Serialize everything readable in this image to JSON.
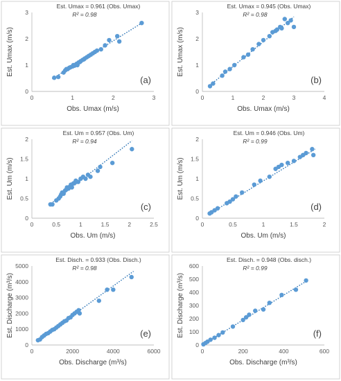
{
  "chart_data": [
    {
      "type": "scatter",
      "panel_label": "(a)",
      "xlabel": "Obs. Umax (m/s)",
      "ylabel": "Est. Umax (m/s)",
      "xlim": [
        0,
        3
      ],
      "ylim": [
        0,
        3
      ],
      "xticks": [
        0,
        1,
        2,
        3
      ],
      "yticks": [
        0,
        1,
        2,
        3
      ],
      "equation": "Est. Umax = 0.961 (Obs. Umax)",
      "r2": "R² = 0.98",
      "trend_slope": 0.961,
      "trend_x": [
        0.5,
        2.7
      ],
      "x": [
        0.55,
        0.65,
        0.78,
        0.82,
        0.85,
        0.88,
        0.92,
        0.95,
        1.0,
        1.02,
        1.05,
        1.08,
        1.1,
        1.12,
        1.15,
        1.18,
        1.2,
        1.25,
        1.28,
        1.3,
        1.35,
        1.4,
        1.45,
        1.5,
        1.55,
        1.6,
        1.7,
        1.8,
        1.9,
        2.1,
        2.15,
        2.7
      ],
      "y": [
        0.52,
        0.55,
        0.72,
        0.8,
        0.85,
        0.85,
        0.9,
        0.92,
        0.95,
        1.0,
        0.98,
        1.02,
        1.05,
        1.0,
        1.1,
        1.12,
        1.15,
        1.2,
        1.22,
        1.25,
        1.3,
        1.35,
        1.4,
        1.45,
        1.5,
        1.55,
        1.6,
        1.75,
        1.95,
        2.1,
        1.9,
        2.6
      ]
    },
    {
      "type": "scatter",
      "panel_label": "(b)",
      "xlabel": "Obs. Umax (m/s)",
      "ylabel": "Est. Umax (m/s)",
      "xlim": [
        0,
        4
      ],
      "ylim": [
        0,
        3
      ],
      "xticks": [
        0,
        1,
        2,
        3,
        4
      ],
      "yticks": [
        0,
        1,
        2,
        3
      ],
      "equation": "Est. Umax = 0.945 (Obs. Umax)",
      "r2": "R² = 0.98",
      "trend_slope": 0.945,
      "trend_x": [
        0.2,
        3.0
      ],
      "x": [
        0.25,
        0.35,
        0.65,
        0.75,
        0.9,
        1.05,
        1.35,
        1.5,
        1.65,
        1.85,
        2.0,
        2.2,
        2.3,
        2.4,
        2.45,
        2.55,
        2.6,
        2.7,
        2.8,
        2.9,
        3.0
      ],
      "y": [
        0.2,
        0.3,
        0.6,
        0.75,
        0.85,
        1.0,
        1.3,
        1.4,
        1.6,
        1.8,
        1.95,
        2.1,
        2.25,
        2.3,
        2.35,
        2.45,
        2.4,
        2.75,
        2.6,
        2.7,
        2.45
      ]
    },
    {
      "type": "scatter",
      "panel_label": "(c)",
      "xlabel": "Obs. Um (m/s)",
      "ylabel": "Est. Um (m/s)",
      "xlim": [
        0,
        2.5
      ],
      "ylim": [
        0,
        2
      ],
      "xticks": [
        0,
        0.5,
        1,
        1.5,
        2,
        2.5
      ],
      "yticks": [
        0,
        0.5,
        1,
        1.5,
        2
      ],
      "equation": "Est. Um = 0.957 (Obs. Um)",
      "r2": "R² = 0.94",
      "trend_slope": 0.957,
      "trend_x": [
        0.35,
        2.05
      ],
      "x": [
        0.38,
        0.42,
        0.5,
        0.55,
        0.58,
        0.6,
        0.62,
        0.65,
        0.68,
        0.7,
        0.72,
        0.75,
        0.78,
        0.8,
        0.82,
        0.85,
        0.88,
        0.9,
        0.95,
        1.0,
        1.05,
        1.1,
        1.15,
        1.2,
        1.35,
        1.4,
        1.65,
        2.05
      ],
      "y": [
        0.35,
        0.35,
        0.45,
        0.5,
        0.55,
        0.6,
        0.65,
        0.62,
        0.7,
        0.72,
        0.78,
        0.75,
        0.8,
        0.85,
        0.78,
        0.88,
        0.9,
        0.95,
        0.92,
        1.0,
        1.05,
        1.0,
        1.1,
        1.05,
        1.2,
        1.3,
        1.4,
        1.75
      ]
    },
    {
      "type": "scatter",
      "panel_label": "(d)",
      "xlabel": "Obs. Um (m/s)",
      "ylabel": "Est. Um (m/s)",
      "xlim": [
        0,
        2
      ],
      "ylim": [
        0,
        2
      ],
      "xticks": [
        0,
        0.5,
        1,
        1.5,
        2
      ],
      "yticks": [
        0,
        0.5,
        1,
        1.5,
        2
      ],
      "equation": "Est. Um = 0.946 (Obs. Um)",
      "r2": "R² = 0.99",
      "trend_slope": 0.946,
      "trend_x": [
        0.1,
        1.85
      ],
      "x": [
        0.12,
        0.15,
        0.2,
        0.25,
        0.4,
        0.45,
        0.5,
        0.55,
        0.65,
        0.85,
        0.95,
        1.1,
        1.2,
        1.25,
        1.3,
        1.4,
        1.5,
        1.6,
        1.65,
        1.7,
        1.8,
        1.82
      ],
      "y": [
        0.12,
        0.15,
        0.2,
        0.25,
        0.38,
        0.42,
        0.48,
        0.55,
        0.65,
        0.85,
        0.95,
        1.05,
        1.25,
        1.3,
        1.35,
        1.4,
        1.45,
        1.55,
        1.6,
        1.65,
        1.75,
        1.6
      ]
    },
    {
      "type": "scatter",
      "panel_label": "(e)",
      "xlabel": "Obs. Discharge (m³/s)",
      "ylabel": "Est. Discharge (m³/s)",
      "xlim": [
        0,
        6000
      ],
      "ylim": [
        0,
        5000
      ],
      "xticks": [
        0,
        2000,
        4000,
        6000
      ],
      "yticks": [
        0,
        1000,
        2000,
        3000,
        4000,
        5000
      ],
      "equation": "Est. Disch. = 0.933 (Obs. Disch.)",
      "r2": "R² = 0.98",
      "trend_slope": 0.933,
      "trend_x": [
        300,
        5000
      ],
      "x": [
        300,
        400,
        500,
        600,
        700,
        800,
        900,
        1000,
        1100,
        1200,
        1300,
        1400,
        1500,
        1600,
        1700,
        1800,
        1900,
        2000,
        2100,
        2200,
        2300,
        2350,
        3300,
        3700,
        4000,
        4900
      ],
      "y": [
        300,
        350,
        500,
        600,
        700,
        750,
        850,
        950,
        1000,
        1100,
        1200,
        1300,
        1400,
        1500,
        1550,
        1700,
        1750,
        1900,
        2000,
        2100,
        2200,
        2000,
        2800,
        3500,
        3500,
        4300
      ]
    },
    {
      "type": "scatter",
      "panel_label": "(f)",
      "xlabel": "Obs. Discharge (m³/s)",
      "ylabel": "Est. Discharge (m³/s)",
      "xlim": [
        0,
        600
      ],
      "ylim": [
        0,
        600
      ],
      "xticks": [
        0,
        200,
        400,
        600
      ],
      "yticks": [
        0,
        100,
        200,
        300,
        400,
        500,
        600
      ],
      "equation": "Est. Disch. = 0.948 (Obs. disch.)",
      "r2": "R² = 0.99",
      "trend_slope": 0.948,
      "trend_x": [
        5,
        510
      ],
      "x": [
        5,
        15,
        25,
        40,
        60,
        80,
        100,
        150,
        200,
        215,
        230,
        260,
        300,
        330,
        390,
        460,
        510
      ],
      "y": [
        5,
        15,
        25,
        40,
        55,
        75,
        95,
        140,
        190,
        210,
        230,
        260,
        270,
        320,
        380,
        420,
        490
      ]
    }
  ]
}
